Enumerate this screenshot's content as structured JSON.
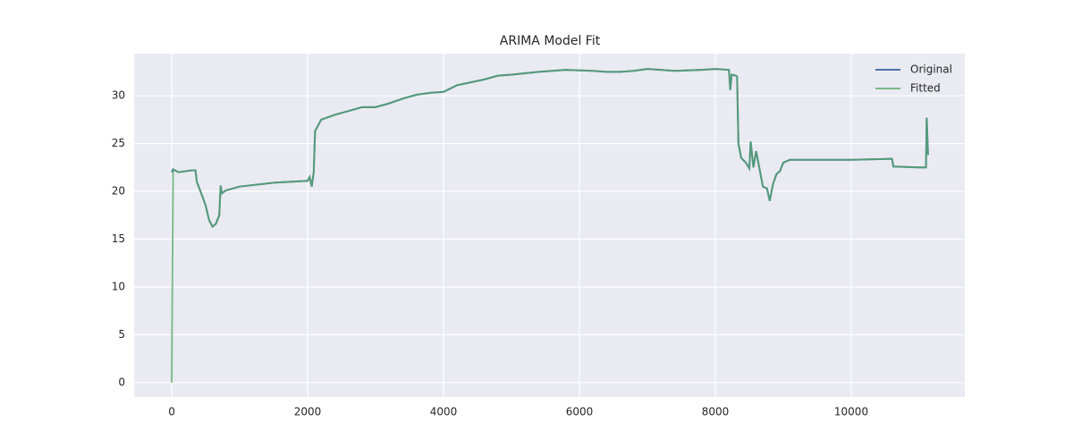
{
  "chart_data": {
    "type": "line",
    "title": "ARIMA Model Fit",
    "x": [
      0,
      20,
      100,
      200,
      300,
      350,
      370,
      450,
      500,
      550,
      600,
      650,
      700,
      720,
      740,
      800,
      1000,
      1500,
      2000,
      2030,
      2060,
      2090,
      2110,
      2200,
      2400,
      2600,
      2800,
      3000,
      3200,
      3400,
      3600,
      3800,
      4000,
      4200,
      4400,
      4600,
      4800,
      5000,
      5400,
      5800,
      6200,
      6400,
      6600,
      6800,
      7000,
      7400,
      7800,
      8000,
      8200,
      8220,
      8240,
      8300,
      8320,
      8340,
      8380,
      8450,
      8500,
      8520,
      8560,
      8600,
      8700,
      8760,
      8800,
      8850,
      8900,
      8950,
      9000,
      9100,
      9500,
      10000,
      10600,
      10620,
      11000,
      11100,
      11110,
      11130
    ],
    "series": [
      {
        "name": "Original",
        "color": "#4c72b0",
        "values": [
          22.0,
          22.3,
          22.0,
          22.1,
          22.2,
          22.2,
          21.0,
          19.5,
          18.5,
          17.0,
          16.3,
          16.6,
          17.5,
          20.6,
          19.8,
          20.1,
          20.5,
          20.9,
          21.1,
          21.5,
          20.5,
          22.0,
          26.3,
          27.5,
          28.0,
          28.4,
          28.8,
          28.8,
          29.2,
          29.7,
          30.1,
          30.3,
          30.4,
          31.1,
          31.4,
          31.7,
          32.1,
          32.2,
          32.5,
          32.7,
          32.6,
          32.5,
          32.5,
          32.6,
          32.8,
          32.6,
          32.7,
          32.8,
          32.7,
          30.6,
          32.2,
          32.1,
          32.0,
          25.0,
          23.5,
          23.0,
          22.4,
          25.2,
          22.5,
          24.2,
          20.5,
          20.3,
          19.0,
          20.8,
          21.8,
          22.1,
          23.0,
          23.3,
          23.3,
          23.3,
          23.4,
          22.6,
          22.5,
          22.5,
          27.7,
          23.8
        ]
      },
      {
        "name": "Fitted",
        "color": "#55a868",
        "values": [
          0.0,
          22.3,
          22.0,
          22.1,
          22.2,
          22.2,
          21.0,
          19.5,
          18.5,
          17.0,
          16.3,
          16.6,
          17.5,
          20.6,
          19.8,
          20.1,
          20.5,
          20.9,
          21.1,
          21.5,
          20.5,
          22.0,
          26.3,
          27.5,
          28.0,
          28.4,
          28.8,
          28.8,
          29.2,
          29.7,
          30.1,
          30.3,
          30.4,
          31.1,
          31.4,
          31.7,
          32.1,
          32.2,
          32.5,
          32.7,
          32.6,
          32.5,
          32.5,
          32.6,
          32.8,
          32.6,
          32.7,
          32.8,
          32.7,
          30.6,
          32.2,
          32.1,
          32.0,
          25.0,
          23.5,
          23.0,
          22.4,
          25.2,
          22.5,
          24.2,
          20.5,
          20.3,
          19.0,
          20.8,
          21.8,
          22.1,
          23.0,
          23.3,
          23.3,
          23.3,
          23.4,
          22.6,
          22.5,
          22.5,
          27.7,
          23.8
        ]
      }
    ],
    "xlim": [
      -553,
      11671
    ],
    "ylim": [
      -1.5,
      34.4
    ],
    "xticks": [
      0,
      2000,
      4000,
      6000,
      8000,
      10000
    ],
    "yticks": [
      0,
      5,
      10,
      15,
      20,
      25,
      30
    ],
    "grid": true,
    "legend": "upper right"
  }
}
